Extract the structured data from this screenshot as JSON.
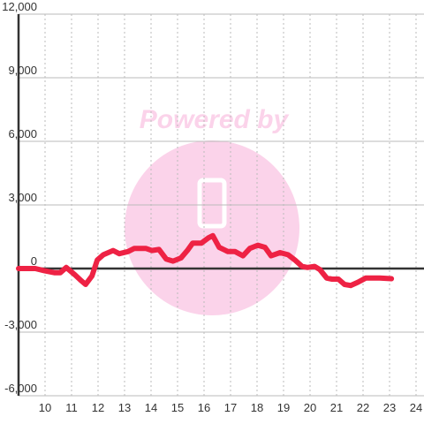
{
  "chart_data": {
    "type": "line",
    "watermark": "Powered by",
    "x": [
      9.0,
      9.63,
      9.97,
      10.37,
      10.57,
      10.8,
      11.13,
      11.37,
      11.53,
      11.77,
      11.97,
      12.2,
      12.57,
      12.8,
      13.13,
      13.37,
      13.8,
      14.03,
      14.3,
      14.57,
      14.83,
      15.13,
      15.37,
      15.57,
      15.9,
      16.17,
      16.33,
      16.57,
      16.9,
      17.17,
      17.47,
      17.73,
      18.03,
      18.3,
      18.53,
      18.87,
      19.17,
      19.43,
      19.7,
      19.9,
      20.17,
      20.37,
      20.63,
      20.83,
      21.07,
      21.3,
      21.53,
      21.8,
      22.1,
      22.63,
      23.07
    ],
    "series": [
      {
        "color": "#ee2244",
        "values": [
          0,
          0,
          -100,
          -200,
          -200,
          50,
          -300,
          -580,
          -750,
          -350,
          400,
          650,
          850,
          700,
          800,
          950,
          950,
          850,
          900,
          450,
          350,
          500,
          850,
          1200,
          1200,
          1450,
          1550,
          1000,
          800,
          800,
          600,
          950,
          1100,
          1000,
          600,
          750,
          650,
          400,
          100,
          50,
          100,
          -50,
          -450,
          -500,
          -500,
          -750,
          -800,
          -650,
          -450,
          -450,
          -480
        ]
      }
    ],
    "xlim": [
      9.0,
      24.3
    ],
    "xticks": [
      10,
      11,
      12,
      13,
      14,
      15,
      16,
      17,
      18,
      19,
      20,
      21,
      22,
      23,
      24
    ],
    "ylim": [
      -6000,
      12000
    ],
    "yticks": [
      {
        "value": -6000,
        "label": "-6,000"
      },
      {
        "value": -3000,
        "label": "-3,000"
      },
      0,
      {
        "value": 3000,
        "label": "3,000"
      },
      {
        "value": 6000,
        "label": "6,000"
      },
      {
        "value": 9000,
        "label": "9,000"
      },
      {
        "value": 12000,
        "label": "12,000"
      }
    ],
    "grid": true
  }
}
